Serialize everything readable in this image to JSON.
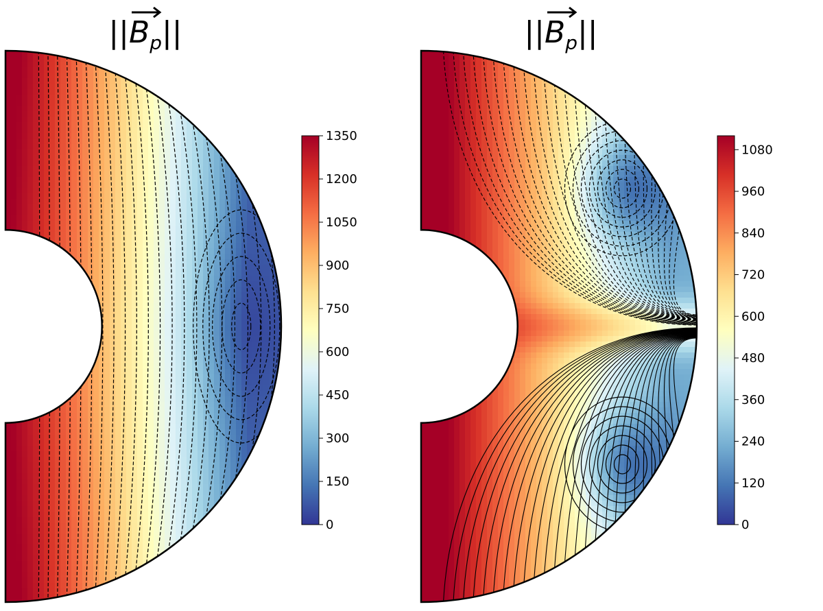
{
  "chart_data": [
    {
      "type": "heatmap",
      "title": "||B_p||",
      "subplot": "left",
      "field": "poloidal magnetic field magnitude",
      "geometry": "half-annulus (meridional cut)",
      "inner_radius_fraction": 0.35,
      "field_lines": "dashed",
      "minimum_location": "equatorial plane, near outer boundary",
      "colorbar": {
        "colormap": "RdYlBu_r",
        "range": [
          0,
          1350
        ],
        "ticks": [
          "0",
          "150",
          "300",
          "450",
          "600",
          "750",
          "900",
          "1050",
          "1200",
          "1350"
        ]
      },
      "value_range": [
        0,
        1350
      ]
    },
    {
      "type": "heatmap",
      "title": "||B_p||",
      "subplot": "right",
      "field": "poloidal magnetic field magnitude",
      "geometry": "half-annulus (meridional cut)",
      "inner_radius_fraction": 0.35,
      "field_lines": "dashed in northern hemisphere, solid in southern hemisphere",
      "minimum_location": "two minima, one per hemisphere near outer boundary",
      "colorbar": {
        "colormap": "RdYlBu_r",
        "range": [
          0,
          1120
        ],
        "ticks": [
          "0",
          "120",
          "240",
          "360",
          "480",
          "600",
          "720",
          "840",
          "960",
          "1080"
        ]
      },
      "value_range": [
        0,
        1120
      ]
    }
  ]
}
